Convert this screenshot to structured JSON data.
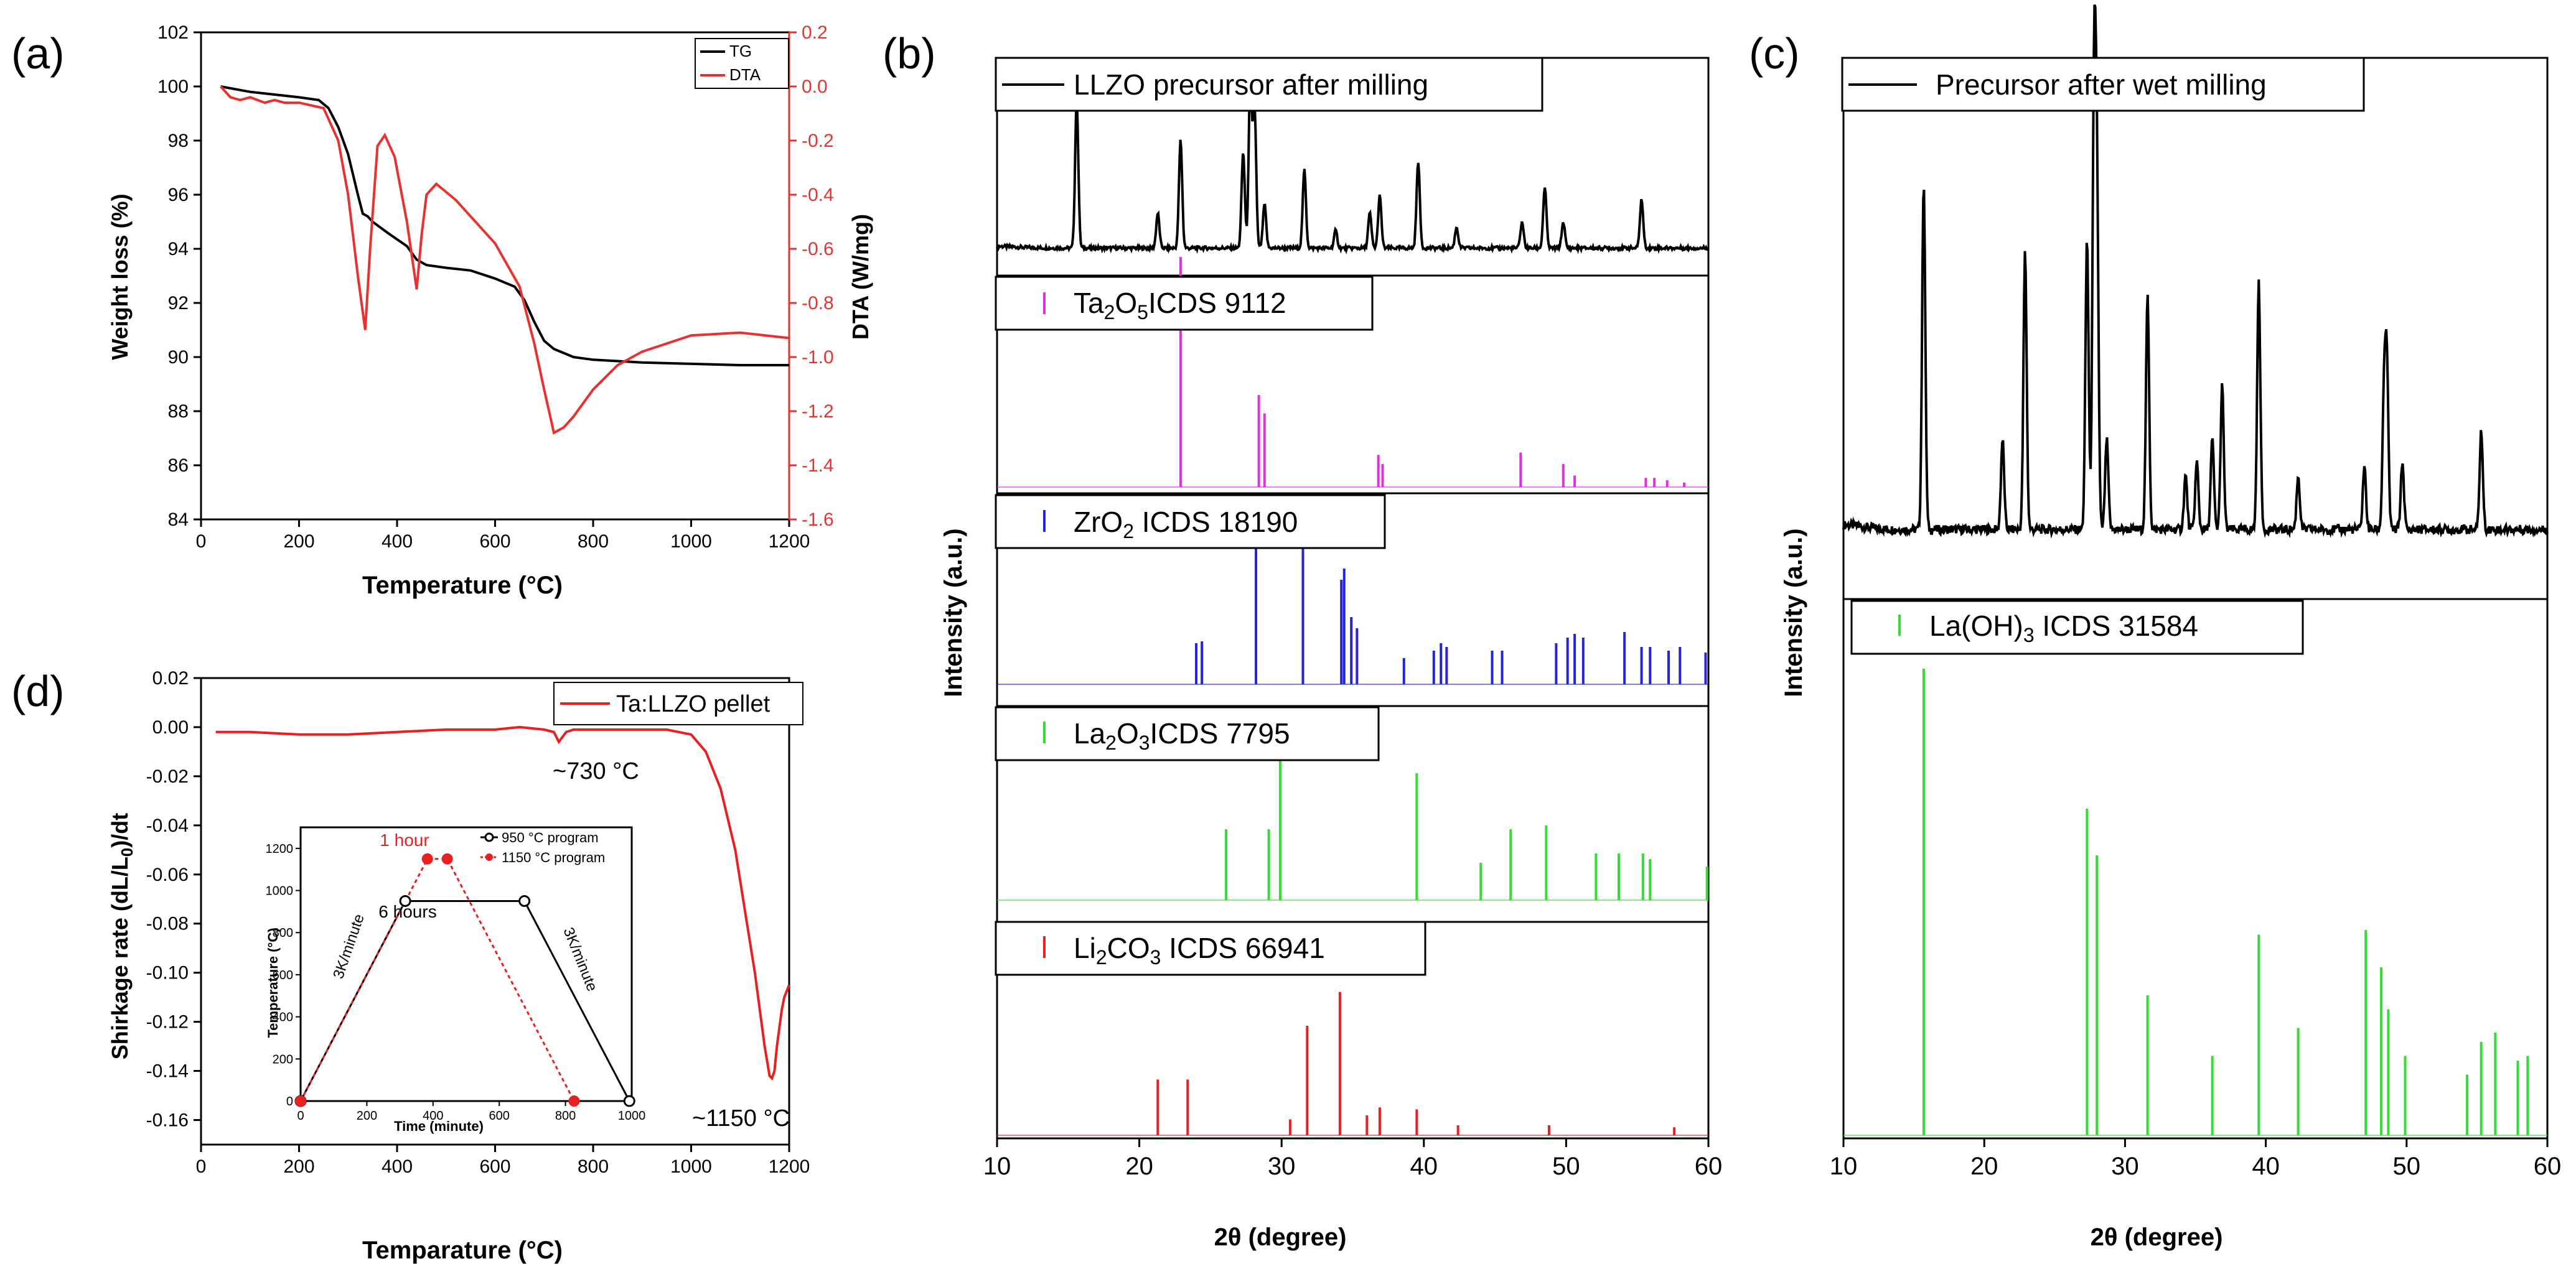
{
  "panel_letters": [
    "(a)",
    "(b)",
    "(c)",
    "(d)"
  ],
  "chart_data": [
    {
      "id": "a",
      "type": "line",
      "xlabel": "Temperature (°C)",
      "ylabel": "Weight loss (%)",
      "y2label": "DTA (W/mg)",
      "xlim": [
        0,
        1200
      ],
      "ylim": [
        84,
        102
      ],
      "y2lim": [
        -1.6,
        0.2
      ],
      "x_ticks": [
        "0",
        "200",
        "400",
        "600",
        "800",
        "1000",
        "1200"
      ],
      "y_ticks": [
        "84",
        "86",
        "88",
        "90",
        "92",
        "94",
        "96",
        "98",
        "100",
        "102"
      ],
      "y2_ticks": [
        "-1.6",
        "-1.4",
        "-1.2",
        "-1.0",
        "-0.8",
        "-0.6",
        "-0.4",
        "-0.2",
        "0.0",
        "0.2"
      ],
      "colors": {
        "TG": "#000000",
        "DTA": "#e8322f"
      },
      "series": [
        {
          "name": "TG",
          "axis": "left",
          "x": [
            40,
            100,
            150,
            200,
            240,
            260,
            280,
            300,
            320,
            330,
            340,
            350,
            380,
            420,
            440,
            460,
            500,
            550,
            600,
            640,
            660,
            680,
            700,
            720,
            760,
            800,
            900,
            1000,
            1100,
            1200
          ],
          "y": [
            100,
            99.8,
            99.7,
            99.6,
            99.5,
            99.2,
            98.5,
            97.5,
            96.0,
            95.3,
            95.2,
            95.0,
            94.6,
            94.1,
            93.6,
            93.4,
            93.3,
            93.2,
            92.9,
            92.6,
            92.1,
            91.3,
            90.6,
            90.3,
            90.0,
            89.9,
            89.8,
            89.75,
            89.7,
            89.7
          ]
        },
        {
          "name": "DTA",
          "axis": "right",
          "x": [
            40,
            60,
            80,
            100,
            130,
            150,
            170,
            200,
            250,
            280,
            300,
            320,
            335,
            345,
            360,
            375,
            395,
            420,
            440,
            450,
            460,
            480,
            520,
            560,
            600,
            650,
            680,
            700,
            720,
            740,
            760,
            800,
            850,
            900,
            1000,
            1100,
            1200
          ],
          "y": [
            0.0,
            -0.04,
            -0.05,
            -0.04,
            -0.06,
            -0.05,
            -0.06,
            -0.06,
            -0.08,
            -0.2,
            -0.4,
            -0.7,
            -0.9,
            -0.6,
            -0.22,
            -0.18,
            -0.26,
            -0.5,
            -0.75,
            -0.55,
            -0.4,
            -0.36,
            -0.42,
            -0.5,
            -0.58,
            -0.74,
            -0.95,
            -1.12,
            -1.28,
            -1.26,
            -1.22,
            -1.12,
            -1.03,
            -0.98,
            -0.92,
            -0.91,
            -0.93
          ]
        }
      ]
    },
    {
      "id": "b",
      "type": "line",
      "xlabel": "2θ (degree)",
      "ylabel": "Intensity (a.u.)",
      "xlim": [
        10,
        60
      ],
      "x_ticks": [
        "10",
        "20",
        "30",
        "40",
        "50",
        "60"
      ],
      "subpanels": [
        {
          "name": "LLZO precursor after milling",
          "color": "#000000",
          "style": "line",
          "peaks": [
            [
              15.6,
              0.85
            ],
            [
              21.3,
              0.2
            ],
            [
              22.9,
              0.62
            ],
            [
              27.3,
              0.55
            ],
            [
              27.8,
              0.95
            ],
            [
              28.1,
              0.8
            ],
            [
              28.8,
              0.25
            ],
            [
              31.6,
              0.45
            ],
            [
              33.8,
              0.1
            ],
            [
              36.2,
              0.2
            ],
            [
              36.9,
              0.3
            ],
            [
              39.6,
              0.5
            ],
            [
              42.3,
              0.12
            ],
            [
              46.9,
              0.15
            ],
            [
              48.5,
              0.35
            ],
            [
              49.8,
              0.15
            ],
            [
              55.3,
              0.28
            ]
          ]
        },
        {
          "name": "Ta2O5ICDS 9112",
          "color": "#e030e0",
          "style": "stick",
          "peaks": [
            [
              22.9,
              1.0
            ],
            [
              28.4,
              0.4
            ],
            [
              28.8,
              0.32
            ],
            [
              36.8,
              0.14
            ],
            [
              37.1,
              0.1
            ],
            [
              46.8,
              0.15
            ],
            [
              49.8,
              0.1
            ],
            [
              50.6,
              0.05
            ],
            [
              55.6,
              0.04
            ],
            [
              56.2,
              0.04
            ],
            [
              57.1,
              0.03
            ],
            [
              58.3,
              0.02
            ]
          ]
        },
        {
          "name": "ZrO2 ICDS 18190",
          "color": "#2424d8",
          "style": "stick",
          "peaks": [
            [
              24.0,
              0.22
            ],
            [
              24.4,
              0.23
            ],
            [
              28.2,
              0.97
            ],
            [
              31.5,
              0.95
            ],
            [
              34.2,
              0.56
            ],
            [
              34.4,
              0.62
            ],
            [
              34.9,
              0.36
            ],
            [
              35.3,
              0.3
            ],
            [
              38.6,
              0.14
            ],
            [
              40.7,
              0.18
            ],
            [
              41.2,
              0.22
            ],
            [
              41.6,
              0.2
            ],
            [
              44.8,
              0.18
            ],
            [
              45.5,
              0.18
            ],
            [
              49.3,
              0.22
            ],
            [
              50.1,
              0.25
            ],
            [
              50.6,
              0.27
            ],
            [
              51.2,
              0.25
            ],
            [
              54.1,
              0.28
            ],
            [
              55.3,
              0.2
            ],
            [
              55.9,
              0.2
            ],
            [
              57.2,
              0.18
            ],
            [
              58.0,
              0.2
            ],
            [
              59.8,
              0.17
            ]
          ]
        },
        {
          "name": "La2O3ICDS 7795",
          "color": "#33dd33",
          "style": "stick",
          "peaks": [
            [
              26.1,
              0.38
            ],
            [
              29.1,
              0.38
            ],
            [
              29.9,
              0.88
            ],
            [
              39.5,
              0.68
            ],
            [
              46.1,
              0.38
            ],
            [
              48.6,
              0.4
            ],
            [
              52.1,
              0.25
            ],
            [
              53.7,
              0.25
            ],
            [
              55.4,
              0.25
            ],
            [
              55.9,
              0.22
            ],
            [
              59.9,
              0.18
            ],
            [
              44.0,
              0.2
            ]
          ]
        },
        {
          "name": "Li2CO3 ICDS 66941",
          "color": "#e82020",
          "style": "stick",
          "peaks": [
            [
              21.3,
              0.28
            ],
            [
              23.4,
              0.28
            ],
            [
              30.6,
              0.08
            ],
            [
              31.8,
              0.55
            ],
            [
              34.1,
              0.72
            ],
            [
              36.0,
              0.1
            ],
            [
              36.9,
              0.14
            ],
            [
              39.5,
              0.13
            ],
            [
              42.4,
              0.05
            ],
            [
              48.8,
              0.05
            ],
            [
              57.6,
              0.04
            ]
          ]
        }
      ]
    },
    {
      "id": "c",
      "type": "line",
      "xlabel": "2θ (degree)",
      "ylabel": "Intensity (a.u.)",
      "xlim": [
        10,
        60
      ],
      "x_ticks": [
        "10",
        "20",
        "30",
        "40",
        "50",
        "60"
      ],
      "subpanels": [
        {
          "name": "Precursor after wet milling",
          "color": "#000000",
          "style": "line",
          "peaks": [
            [
              15.7,
              0.78
            ],
            [
              21.3,
              0.2
            ],
            [
              22.9,
              0.62
            ],
            [
              27.3,
              0.65
            ],
            [
              27.8,
              0.95
            ],
            [
              28.0,
              0.75
            ],
            [
              28.7,
              0.2
            ],
            [
              31.6,
              0.52
            ],
            [
              34.3,
              0.12
            ],
            [
              35.1,
              0.15
            ],
            [
              36.2,
              0.2
            ],
            [
              36.9,
              0.32
            ],
            [
              39.5,
              0.55
            ],
            [
              42.3,
              0.12
            ],
            [
              47.0,
              0.14
            ],
            [
              48.4,
              0.3
            ],
            [
              48.6,
              0.35
            ],
            [
              49.7,
              0.15
            ],
            [
              55.3,
              0.22
            ]
          ]
        },
        {
          "name": "La(OH)3 ICDS 31584",
          "color": "#33dd33",
          "style": "stick",
          "peaks": [
            [
              15.7,
              1.0
            ],
            [
              27.3,
              0.7
            ],
            [
              28.0,
              0.6
            ],
            [
              31.6,
              0.3
            ],
            [
              36.2,
              0.17
            ],
            [
              39.5,
              0.43
            ],
            [
              42.3,
              0.23
            ],
            [
              47.1,
              0.44
            ],
            [
              48.2,
              0.36
            ],
            [
              48.7,
              0.27
            ],
            [
              49.9,
              0.17
            ],
            [
              54.3,
              0.13
            ],
            [
              55.3,
              0.2
            ],
            [
              56.3,
              0.22
            ],
            [
              57.9,
              0.16
            ],
            [
              58.6,
              0.17
            ]
          ]
        }
      ]
    },
    {
      "id": "d",
      "type": "line",
      "xlabel": "Temparature (°C)",
      "ylabel": "Shirkage rate (dL/L0)/dt",
      "xlim": [
        0,
        1200
      ],
      "ylim": [
        -0.17,
        0.02
      ],
      "x_ticks": [
        "0",
        "200",
        "400",
        "600",
        "800",
        "1000",
        "1200"
      ],
      "y_ticks": [
        "0.02",
        "0.00",
        "-0.02",
        "-0.04",
        "-0.06",
        "-0.08",
        "-0.10",
        "-0.12",
        "-0.14",
        "-0.16"
      ],
      "annotations": [
        "~730 °C",
        "~1150 °C"
      ],
      "series": [
        {
          "name": "Ta:LLZO pellet",
          "color": "#e82020",
          "x": [
            30,
            100,
            200,
            300,
            400,
            500,
            600,
            650,
            700,
            720,
            730,
            745,
            760,
            800,
            850,
            900,
            950,
            1000,
            1030,
            1060,
            1090,
            1110,
            1130,
            1150,
            1160,
            1165,
            1170,
            1175,
            1185,
            1190,
            1200
          ],
          "y": [
            -0.002,
            -0.002,
            -0.003,
            -0.003,
            -0.002,
            -0.001,
            -0.001,
            0.0,
            -0.001,
            -0.002,
            -0.006,
            -0.002,
            -0.001,
            -0.001,
            -0.001,
            -0.001,
            -0.001,
            -0.003,
            -0.01,
            -0.025,
            -0.05,
            -0.075,
            -0.1,
            -0.13,
            -0.142,
            -0.143,
            -0.14,
            -0.13,
            -0.115,
            -0.11,
            -0.105
          ]
        }
      ],
      "inset": {
        "xlabel": "Time (minute)",
        "ylabel": "Temperature (°C)",
        "xlim": [
          0,
          1000
        ],
        "ylim": [
          0,
          1300
        ],
        "x_ticks": [
          "0",
          "200",
          "400",
          "600",
          "800",
          "1000"
        ],
        "y_ticks": [
          "0",
          "200",
          "400",
          "600",
          "800",
          "1000",
          "1200"
        ],
        "labels": {
          "hold_short": "1 hour",
          "hold_long": "6 hours",
          "ramp_up": "3K/minute",
          "ramp_down": "3K/minute"
        },
        "series": [
          {
            "name": "950 °C program",
            "color": "#000000",
            "x": [
              0,
              316,
              676,
              993
            ],
            "y": [
              0,
              950,
              950,
              0
            ]
          },
          {
            "name": "1150 °C program",
            "color": "#e82020",
            "x": [
              0,
              383,
              443,
              826
            ],
            "y": [
              0,
              1150,
              1150,
              0
            ]
          }
        ]
      }
    }
  ]
}
